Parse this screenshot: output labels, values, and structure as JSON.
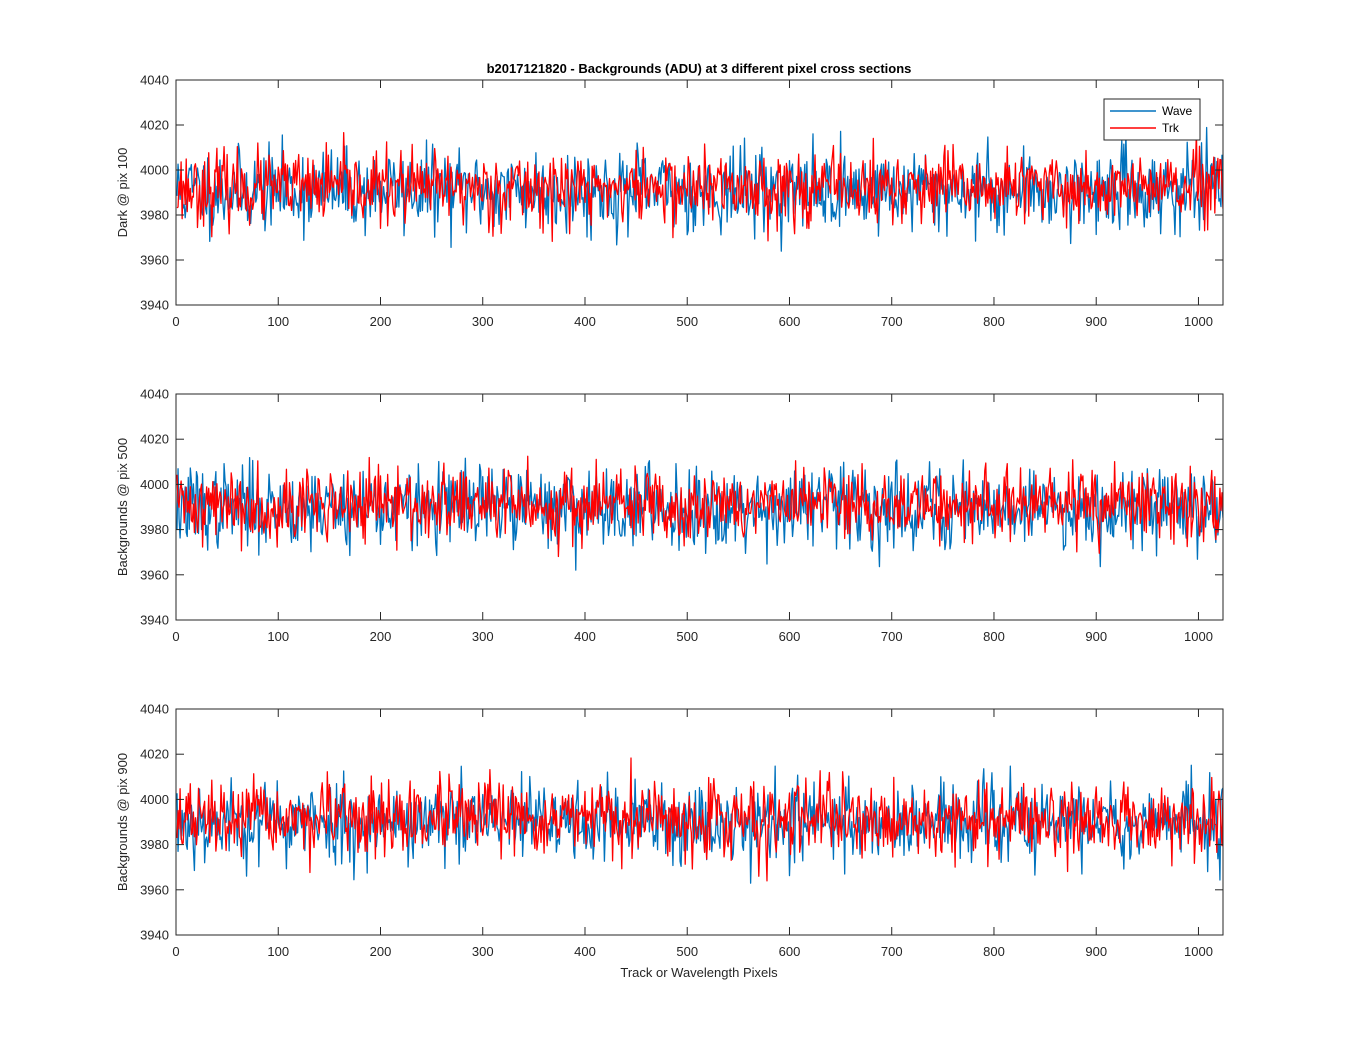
{
  "chart_data": [
    {
      "type": "line",
      "title": "b2017121820 - Backgrounds (ADU) at 3 different pixel cross sections",
      "xlabel": "",
      "ylabel": "Dark @ pix 100",
      "xlim": [
        0,
        1024
      ],
      "ylim": [
        3940,
        4040
      ],
      "xticks": [
        0,
        100,
        200,
        300,
        400,
        500,
        600,
        700,
        800,
        900,
        1000
      ],
      "yticks": [
        3940,
        3960,
        3980,
        4000,
        4020,
        4040
      ],
      "grid": false,
      "legend": "top-right",
      "x_points": 1024,
      "series": [
        {
          "name": "Wave",
          "color": "#0072bd",
          "mean": 3991,
          "sd": 9,
          "min": 3958,
          "max": 4024,
          "seed": 11
        },
        {
          "name": "Trk",
          "color": "#ff0000",
          "mean": 3992,
          "sd": 8,
          "min": 3960,
          "max": 4027,
          "seed": 23
        }
      ]
    },
    {
      "type": "line",
      "title": "",
      "xlabel": "",
      "ylabel": "Backgrounds @ pix 500",
      "xlim": [
        0,
        1024
      ],
      "ylim": [
        3940,
        4040
      ],
      "xticks": [
        0,
        100,
        200,
        300,
        400,
        500,
        600,
        700,
        800,
        900,
        1000
      ],
      "yticks": [
        3940,
        3960,
        3980,
        4000,
        4020,
        4040
      ],
      "grid": false,
      "x_points": 1024,
      "series": [
        {
          "name": "Wave",
          "color": "#0072bd",
          "mean": 3990,
          "sd": 9,
          "min": 3955,
          "max": 4022,
          "seed": 37
        },
        {
          "name": "Trk",
          "color": "#ff0000",
          "mean": 3991,
          "sd": 8,
          "min": 3964,
          "max": 4021,
          "seed": 41
        }
      ]
    },
    {
      "type": "line",
      "title": "",
      "xlabel": "Track or Wavelength Pixels",
      "ylabel": "Backgrounds @ pix 900",
      "xlim": [
        0,
        1024
      ],
      "ylim": [
        3940,
        4040
      ],
      "xticks": [
        0,
        100,
        200,
        300,
        400,
        500,
        600,
        700,
        800,
        900,
        1000
      ],
      "yticks": [
        3940,
        3960,
        3980,
        4000,
        4020,
        4040
      ],
      "grid": false,
      "x_points": 1024,
      "series": [
        {
          "name": "Wave",
          "color": "#0072bd",
          "mean": 3990,
          "sd": 9,
          "min": 3962,
          "max": 4022,
          "seed": 53
        },
        {
          "name": "Trk",
          "color": "#ff0000",
          "mean": 3991,
          "sd": 8,
          "min": 3958,
          "max": 4020,
          "seed": 67
        }
      ]
    }
  ]
}
